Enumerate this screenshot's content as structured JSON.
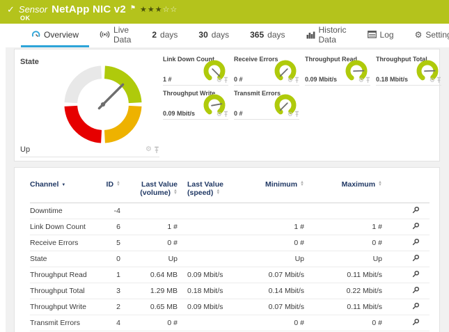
{
  "header": {
    "status_icon": "✓",
    "kind_label": "Sensor",
    "sensor_name": "NetApp NIC v2",
    "flag_icon": "⚑",
    "stars_filled": "★★★",
    "stars_empty": "☆☆",
    "status_text": "OK"
  },
  "tabs": [
    {
      "label": "Overview",
      "active": true
    },
    {
      "label": "Live Data"
    },
    {
      "strong": "2",
      "label": "days"
    },
    {
      "strong": "30",
      "label": "days"
    },
    {
      "strong": "365",
      "label": "days"
    },
    {
      "label": "Historic Data"
    },
    {
      "label": "Log"
    },
    {
      "label": "Settings"
    }
  ],
  "state_gauge": {
    "title": "State",
    "value": "Up",
    "needle_deg": 45
  },
  "mini_gauges": [
    {
      "label": "Link Down Count",
      "value": "1 #",
      "needle_deg": 135
    },
    {
      "label": "Receive Errors",
      "value": "0 #",
      "needle_deg": 225
    },
    {
      "label": "Throughput Read",
      "value": "0.09 Mbit/s",
      "needle_deg": 88
    },
    {
      "label": "Throughput Total",
      "value": "0.18 Mbit/s",
      "needle_deg": 88
    },
    {
      "label": "Throughput Write",
      "value": "0.09 Mbit/s",
      "needle_deg": 80
    },
    {
      "label": "Transmit Errors",
      "value": "0 #",
      "needle_deg": 225
    }
  ],
  "table": {
    "columns": [
      {
        "l1": "Channel"
      },
      {
        "l1": "ID"
      },
      {
        "l1": "Last Value",
        "l2": "(volume)"
      },
      {
        "l1": "Last Value",
        "l2": "(speed)"
      },
      {
        "l1": "Minimum"
      },
      {
        "l1": "Maximum"
      }
    ],
    "rows": [
      {
        "channel": "Downtime",
        "id": "-4",
        "last_volume": "",
        "last_speed": "",
        "min": "",
        "max": ""
      },
      {
        "channel": "Link Down Count",
        "id": "6",
        "last_volume": "1 #",
        "last_speed": "",
        "min": "1 #",
        "max": "1 #"
      },
      {
        "channel": "Receive Errors",
        "id": "5",
        "last_volume": "0 #",
        "last_speed": "",
        "min": "0 #",
        "max": "0 #"
      },
      {
        "channel": "State",
        "id": "0",
        "last_volume": "Up",
        "last_speed": "",
        "min": "Up",
        "max": "Up"
      },
      {
        "channel": "Throughput Read",
        "id": "1",
        "last_volume": "0.64 MB",
        "last_speed": "0.09 Mbit/s",
        "min": "0.07 Mbit/s",
        "max": "0.11 Mbit/s"
      },
      {
        "channel": "Throughput Total",
        "id": "3",
        "last_volume": "1.29 MB",
        "last_speed": "0.18 Mbit/s",
        "min": "0.14 Mbit/s",
        "max": "0.22 Mbit/s"
      },
      {
        "channel": "Throughput Write",
        "id": "2",
        "last_volume": "0.65 MB",
        "last_speed": "0.09 Mbit/s",
        "min": "0.07 Mbit/s",
        "max": "0.11 Mbit/s"
      },
      {
        "channel": "Transmit Errors",
        "id": "4",
        "last_volume": "0 #",
        "last_speed": "",
        "min": "0 #",
        "max": "0 #"
      }
    ]
  },
  "colors": {
    "header_green": "#b4c31c",
    "accent_blue": "#2da4d8",
    "table_header_blue": "#203864",
    "gauge_green": "#afca0b",
    "gauge_amber": "#eeb200",
    "gauge_red": "#e60000",
    "gauge_empty": "#e8e8e8",
    "needle_gray": "#6e6e6e"
  }
}
